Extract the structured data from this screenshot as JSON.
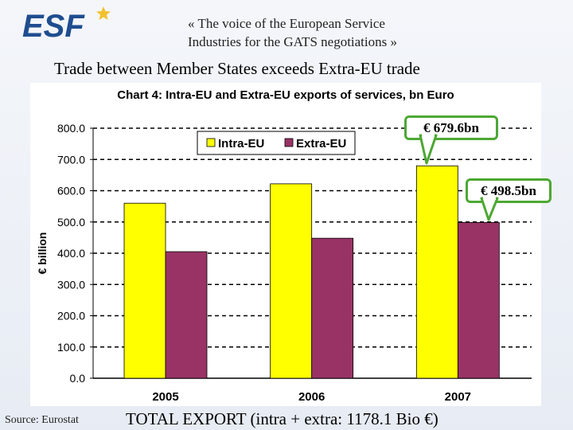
{
  "header": {
    "logo_text": "ESF",
    "tagline_line1": "« The voice of the European Service",
    "tagline_line2": "Industries for the GATS negotiations »",
    "title": "Trade between Member States exceeds Extra-EU trade"
  },
  "colors": {
    "intra": "#ffff00",
    "extra": "#993366",
    "logo_blue": "#1f4d8f",
    "star": "#f2c12e",
    "callout_border": "#4da833"
  },
  "callouts": {
    "intra_2007": "€ 679.6bn",
    "extra_2007": "€ 498.5bn"
  },
  "chart_data": {
    "type": "bar",
    "title": "Chart 4: Intra-EU and Extra-EU exports of services, bn Euro",
    "xlabel": "",
    "ylabel": "€ billion",
    "categories": [
      "2005",
      "2006",
      "2007"
    ],
    "series": [
      {
        "name": "Intra-EU",
        "values": [
          560,
          622,
          679.6
        ]
      },
      {
        "name": "Extra-EU",
        "values": [
          405,
          448,
          498.5
        ]
      }
    ],
    "ylim": [
      0,
      800
    ],
    "yticks": [
      "0.0",
      "100.0",
      "200.0",
      "300.0",
      "400.0",
      "500.0",
      "600.0",
      "700.0",
      "800.0"
    ],
    "legend_position": "top-right",
    "grid": "dashed horizontal"
  },
  "footer": {
    "source": "Source: Eurostat",
    "total": "TOTAL EXPORT (intra + extra: 1178.1 Bio €)"
  }
}
